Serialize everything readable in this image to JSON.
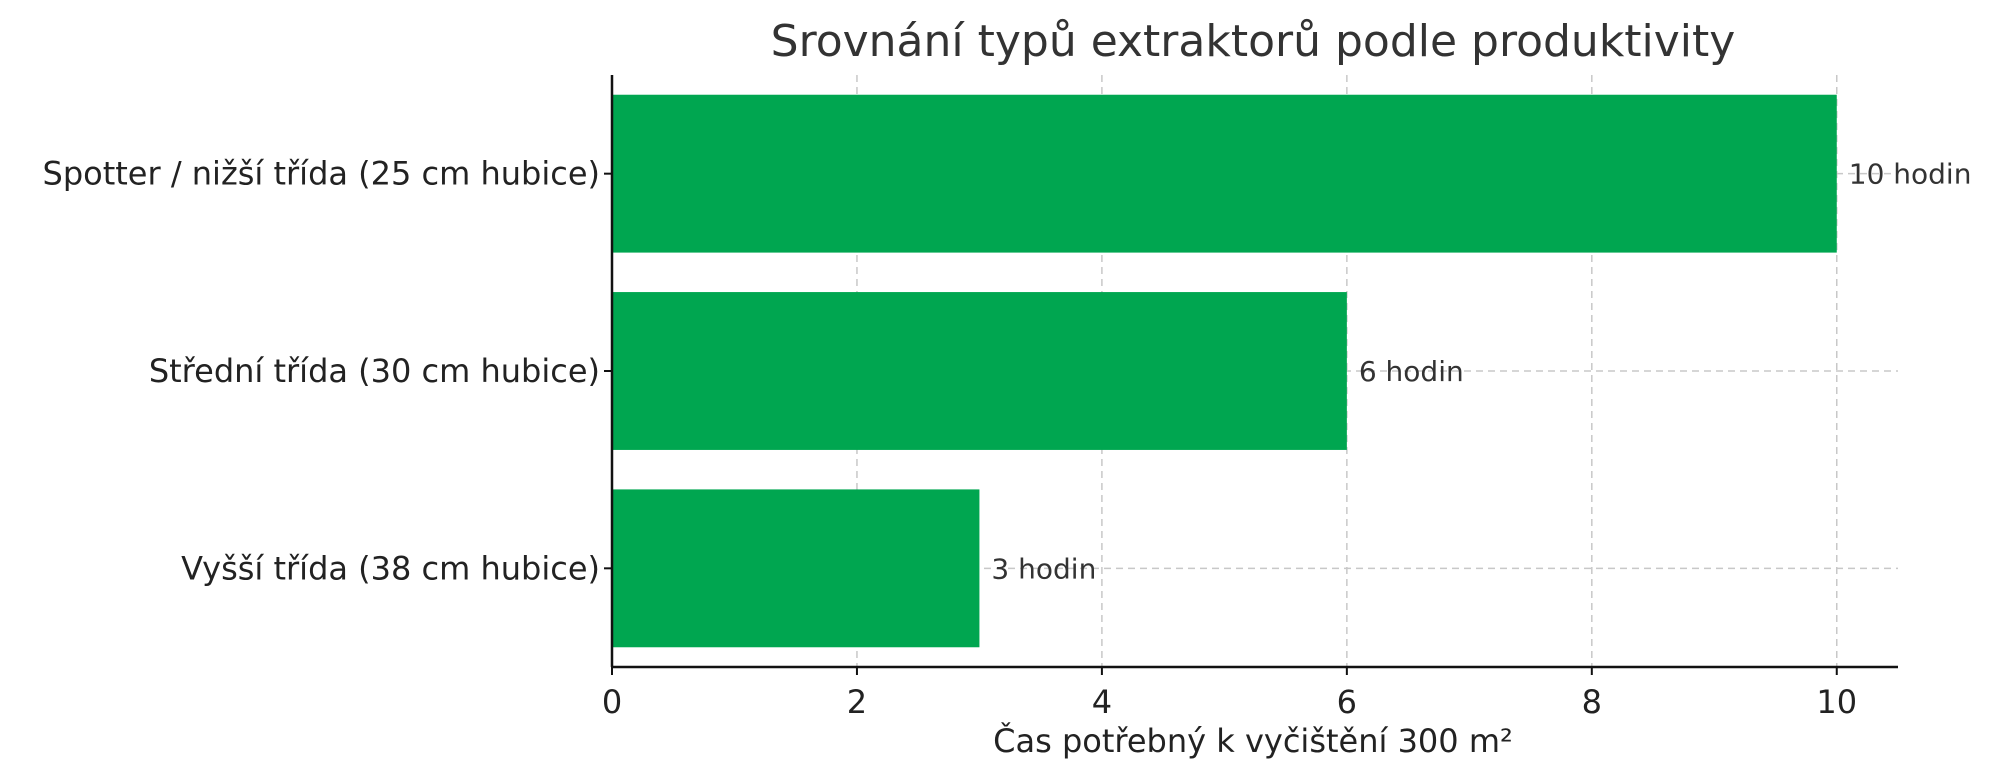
{
  "chart_data": {
    "type": "bar",
    "orientation": "horizontal",
    "title": "Srovnání typů extraktorů podle produktivity",
    "xlabel": "Čas potřebný k vyčištění 300 m²",
    "ylabel": "",
    "categories": [
      "Spotter / nižší třída (25 cm hubice)",
      "Střední třída (30 cm hubice)",
      "Vyšší třída (38 cm hubice)"
    ],
    "values": [
      10,
      6,
      3
    ],
    "data_labels": [
      "10 hodin",
      "6 hodin",
      "3 hodin"
    ],
    "xlim": [
      0,
      10.5
    ],
    "xticks": [
      0,
      2,
      4,
      6,
      8,
      10
    ],
    "xtick_labels": [
      "0",
      "2",
      "4",
      "6",
      "8",
      "10"
    ],
    "grid": true,
    "legend": "none",
    "bar_color": "#00a650"
  }
}
